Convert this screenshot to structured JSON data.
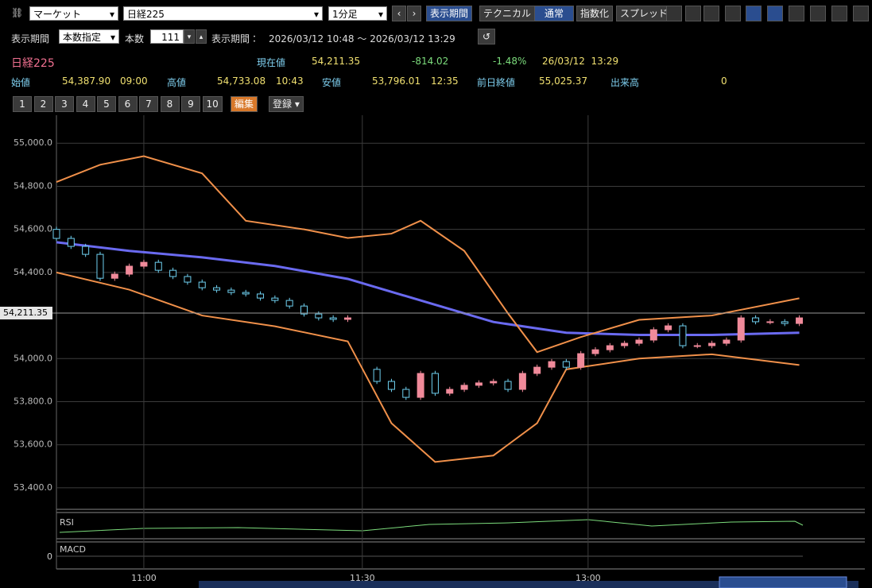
{
  "toolbar": {
    "market": "マーケット",
    "symbol": "日経225",
    "interval": "1分足",
    "period_button": "表示期間",
    "technical_button": "テクニカル",
    "mode_normal": "通常",
    "mode_index": "指数化",
    "mode_spread": "スプレッド"
  },
  "period_bar": {
    "label": "表示期間",
    "mode": "本数指定",
    "count_label": "本数",
    "count": "111",
    "range_label": "表示期間：",
    "range": "2026/03/12 10:48 ～ 2026/03/12 13:29"
  },
  "quote": {
    "symbol": "日経225",
    "price_label": "現在値",
    "price": "54,211.35",
    "change": "-814.02",
    "change_pct": "-1.48%",
    "timestamp": "26/03/12  13:29",
    "open_label": "始値",
    "open": "54,387.90",
    "open_time": "09:00",
    "high_label": "高値",
    "high": "54,733.08",
    "high_time": "10:43",
    "low_label": "安値",
    "low": "53,796.01",
    "low_time": "12:35",
    "prev_close_label": "前日終値",
    "prev_close": "55,025.37",
    "volume_label": "出来高",
    "volume": "0"
  },
  "presets": {
    "buttons": [
      "1",
      "2",
      "3",
      "4",
      "5",
      "6",
      "7",
      "8",
      "9",
      "10"
    ],
    "edit": "編集",
    "register": "登録"
  },
  "chart_data": {
    "type": "candlestick",
    "x": [
      0,
      2,
      4,
      6,
      8,
      10,
      12,
      14,
      16,
      18,
      20,
      22,
      24,
      26,
      28,
      30,
      32,
      34,
      36,
      38,
      40,
      44,
      46,
      48,
      50,
      52,
      54,
      56,
      58,
      60,
      62,
      64,
      66,
      68,
      70,
      72,
      74,
      76,
      78,
      80,
      82,
      84,
      86,
      88,
      90,
      92,
      94,
      96,
      98,
      100,
      102
    ],
    "open": [
      54600,
      54558,
      54521,
      54484,
      54373,
      54392,
      54429,
      54447,
      54410,
      54381,
      54355,
      54329,
      54318,
      54307,
      54300,
      54281,
      54270,
      54244,
      54207,
      54189,
      54182,
      53950,
      53894,
      53857,
      53820,
      53931,
      53839,
      53857,
      53876,
      53887,
      53894,
      53857,
      53931,
      53960,
      53986,
      53960,
      54023,
      54041,
      54060,
      54071,
      54086,
      54134,
      54152,
      54060,
      54060,
      54071,
      54086,
      54189,
      54171,
      54171,
      54163
    ],
    "high": [
      54612,
      54570,
      54533,
      54496,
      54404,
      54441,
      54459,
      54459,
      54422,
      54393,
      54367,
      54341,
      54330,
      54319,
      54312,
      54293,
      54282,
      54256,
      54219,
      54201,
      54201,
      53962,
      53906,
      53869,
      53943,
      53943,
      53869,
      53888,
      53899,
      53906,
      53906,
      53943,
      53972,
      53998,
      53998,
      54035,
      54053,
      54072,
      54083,
      54098,
      54146,
      54164,
      54164,
      54072,
      54083,
      54098,
      54201,
      54201,
      54183,
      54183,
      54201
    ],
    "low": [
      54546,
      54509,
      54472,
      54361,
      54361,
      54380,
      54417,
      54398,
      54369,
      54343,
      54317,
      54306,
      54295,
      54288,
      54269,
      54258,
      54232,
      54195,
      54177,
      54170,
      54170,
      53882,
      53845,
      53808,
      53808,
      53827,
      53827,
      53845,
      53864,
      53875,
      53845,
      53845,
      53919,
      53948,
      53948,
      53948,
      54011,
      54029,
      54048,
      54059,
      54074,
      54122,
      54048,
      54048,
      54048,
      54059,
      54074,
      54159,
      54159,
      54151,
      54151
    ],
    "close": [
      54558,
      54521,
      54484,
      54373,
      54392,
      54429,
      54447,
      54410,
      54381,
      54355,
      54329,
      54318,
      54307,
      54300,
      54281,
      54270,
      54244,
      54207,
      54189,
      54182,
      54189,
      53894,
      53857,
      53820,
      53931,
      53839,
      53857,
      53876,
      53887,
      53894,
      53857,
      53931,
      53960,
      53986,
      53960,
      54023,
      54041,
      54060,
      54071,
      54086,
      54134,
      54152,
      54060,
      54060,
      54071,
      54086,
      54189,
      54171,
      54171,
      54163,
      54189
    ],
    "up_color": "#f08a9a",
    "down_color": "#6fd0f0",
    "overlays": [
      {
        "color": "#6a6af0",
        "width": 3,
        "x": [
          0,
          10,
          20,
          30,
          40,
          50,
          60,
          70,
          80,
          90,
          102
        ],
        "values": [
          54540,
          54500,
          54470,
          54430,
          54370,
          54270,
          54170,
          54120,
          54110,
          54110,
          54120
        ]
      },
      {
        "color": "#f0904a",
        "width": 2,
        "x": [
          0,
          6,
          12,
          20,
          26,
          34,
          40,
          46,
          50,
          56,
          62,
          66,
          72,
          80,
          90,
          102
        ],
        "values": [
          54820,
          54900,
          54940,
          54860,
          54640,
          54600,
          54560,
          54580,
          54640,
          54500,
          54210,
          54030,
          54100,
          54180,
          54200,
          54280
        ]
      },
      {
        "color": "#f0904a",
        "width": 2,
        "x": [
          0,
          10,
          20,
          30,
          40,
          46,
          52,
          60,
          66,
          70,
          80,
          90,
          102
        ],
        "values": [
          54400,
          54320,
          54200,
          54150,
          54080,
          53700,
          53520,
          53550,
          53700,
          53950,
          54000,
          54020,
          53970
        ]
      }
    ],
    "xlim": [
      0,
      111
    ],
    "ylim": [
      53300,
      55130
    ],
    "xticks": [
      {
        "value": 12,
        "label": "11:00"
      },
      {
        "value": 42,
        "label": "11:30"
      },
      {
        "value": 73,
        "label": "13:00"
      }
    ],
    "yticks": [
      {
        "value": 53400,
        "label": "53,400.0"
      },
      {
        "value": 53600,
        "label": "53,600.0"
      },
      {
        "value": 53800,
        "label": "53,800.0"
      },
      {
        "value": 54000,
        "label": "54,000.0"
      },
      {
        "value": 54400,
        "label": "54,400.0"
      },
      {
        "value": 54600,
        "label": "54,600.0"
      },
      {
        "value": 54800,
        "label": "54,800.0"
      },
      {
        "value": 55000,
        "label": "55,000.0"
      }
    ],
    "last": {
      "value": 54211.35,
      "label": "54,211.35"
    },
    "grid": true,
    "panels": {
      "rsi_label": "RSI",
      "macd_label": "MACD",
      "macd_zero": "0"
    }
  }
}
